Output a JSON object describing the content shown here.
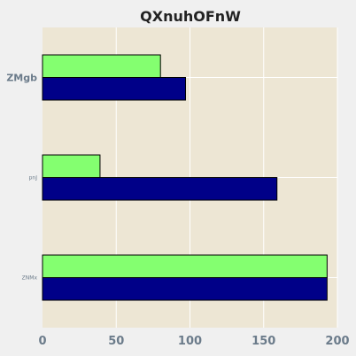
{
  "chart_data": {
    "type": "bar",
    "orientation": "horizontal",
    "title": "QXnuhOFnW",
    "categories": [
      "ZMgb",
      "pnJ",
      "ZNMx"
    ],
    "series": [
      {
        "values": [
          80,
          39,
          193
        ],
        "color": "#84ff70"
      },
      {
        "values": [
          97,
          159,
          193
        ],
        "color": "#000088"
      }
    ],
    "xlim": [
      0,
      200
    ],
    "xticks": [
      0,
      50,
      100,
      150,
      200
    ],
    "xlabel": "",
    "ylabel": "",
    "grid": true,
    "plot_background": "#ede6d4",
    "page_background": "#f0f0f0"
  }
}
